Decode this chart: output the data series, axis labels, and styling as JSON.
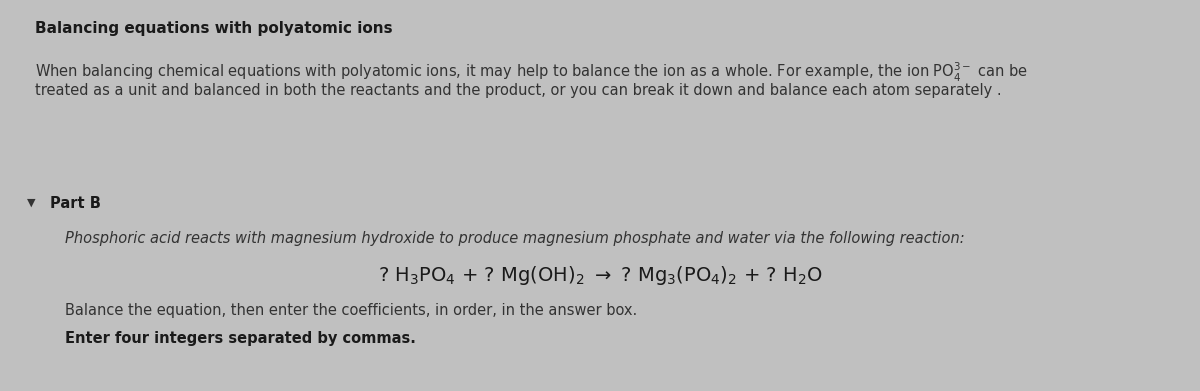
{
  "outer_bg": "#c0c0c0",
  "header_bg": "#ccd9e8",
  "body_bg": "#e2e2e2",
  "title": "Balancing equations with polyatomic ions",
  "intro_line1": "When balancing chemical equations with polyatomic ions, it may help to balance the ion as a whole. For example, the ion $\\mathregular{PO_4^{3-}}$ can be",
  "intro_line2": "treated as a unit and balanced in both the reactants and the product, or you can break it down and balance each atom separately .",
  "part_b_label": "Part B",
  "description": "Phosphoric acid reacts with magnesium hydroxide to produce magnesium phosphate and water via the following reaction:",
  "eq_text": "? $\\mathregular{H_3PO_4}$ + ? $\\mathregular{Mg(OH)_2}$ $\\rightarrow$ ? $\\mathregular{Mg_3(PO_4)_2}$ + ? $\\mathregular{H_2O}$",
  "instruction1": "Balance the equation, then enter the coefficients, in order, in the answer box.",
  "instruction2": "Enter four integers separated by commas.",
  "title_fontsize": 11,
  "body_fontsize": 10.5,
  "eq_fontsize": 14,
  "instr_fontsize": 10.5
}
